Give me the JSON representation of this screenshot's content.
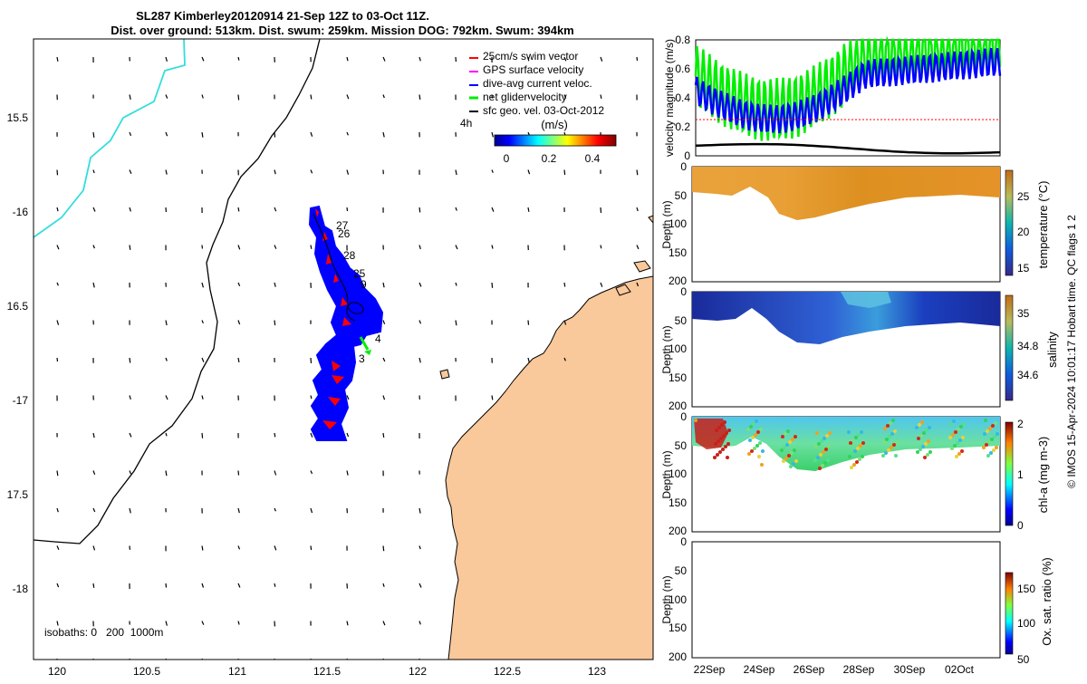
{
  "title": {
    "line1": "SL287 Kimberley20120914 21-Sep 12Z to 03-Oct 11Z.",
    "line2": "Dist. over ground: 513km. Dist. swum: 259km. Mission DOG: 792km. Swum: 394km"
  },
  "map": {
    "lon_ticks": [
      "120",
      "120.5",
      "121",
      "121.5",
      "122",
      "122.5",
      "123"
    ],
    "lat_ticks": [
      "15.5",
      "-16",
      "16.5",
      "-17",
      "17.5",
      "-18"
    ],
    "xlim": [
      119.87,
      123.3
    ],
    "ylim": [
      -18.42,
      -15.05
    ],
    "isobath_label": "isobaths: 0   200  1000m",
    "time_step_label": "4h",
    "colorbar": {
      "label": "(m/s)",
      "ticks": [
        "0",
        "0.2",
        "0.4"
      ],
      "range": [
        0,
        0.5
      ]
    },
    "legend": [
      {
        "label": "25cm/s swim vector",
        "color": "#ff0000"
      },
      {
        "label": "GPS surface velocity",
        "color": "#ff00ff"
      },
      {
        "label": "dive-avg current veloc.",
        "color": "#0000ff"
      },
      {
        "label": "net glider velocity",
        "color": "#00ee00"
      },
      {
        "label": "sfc geo. vel. 03-Oct-2012",
        "color": "#000000"
      }
    ],
    "track_labels": [
      "27",
      "26",
      "28",
      "25",
      "9",
      "4",
      "3"
    ],
    "colors": {
      "land": "#f9c89b",
      "coastline": "#000000",
      "isobath_1000m": "#33dddd",
      "track": "#0000ff",
      "swim": "#ff0000",
      "net_velocity": "#00ee00"
    }
  },
  "velocity_panel": {
    "ylabel": "velocity magnitude (m/s)",
    "yticks": [
      "0",
      "0.2",
      "0.4",
      "0.6",
      "0.8"
    ],
    "ylim": [
      0,
      0.8
    ],
    "series": [
      {
        "color": "#00ee00"
      },
      {
        "color": "#0000ff"
      },
      {
        "color": "#ff0000"
      },
      {
        "color": "#000000"
      }
    ]
  },
  "section_panels": [
    {
      "ylabel": "Depth (m)",
      "yticks": [
        "0",
        "50",
        "100",
        "150",
        "200"
      ],
      "cbar_label": "temperature (°C)",
      "cbar_ticks": [
        "25",
        "20",
        "15"
      ]
    },
    {
      "ylabel": "Depth (m)",
      "yticks": [
        "0",
        "50",
        "100",
        "150",
        "200"
      ],
      "cbar_label": "salinity",
      "cbar_ticks": [
        "35",
        "34.8",
        "34.6"
      ]
    },
    {
      "ylabel": "Depth (m)",
      "yticks": [
        "0",
        "50",
        "100",
        "150",
        "200"
      ],
      "cbar_label": "chl-a (mg m-3)",
      "cbar_ticks": [
        "2",
        "1",
        "0"
      ]
    },
    {
      "ylabel": "Depth (m)",
      "yticks": [
        "0",
        "50",
        "100",
        "150",
        "200"
      ],
      "cbar_label": "Ox. sat. ratio (%)",
      "cbar_ticks": [
        "150",
        "100",
        "50"
      ]
    }
  ],
  "time_axis": {
    "ticks": [
      "22Sep",
      "24Sep",
      "26Sep",
      "28Sep",
      "30Sep",
      "02Oct"
    ]
  },
  "footer": {
    "credit": "© IMOS 15-Apr-2024 10:01:17 Hobart time. QC flags 1  2"
  }
}
